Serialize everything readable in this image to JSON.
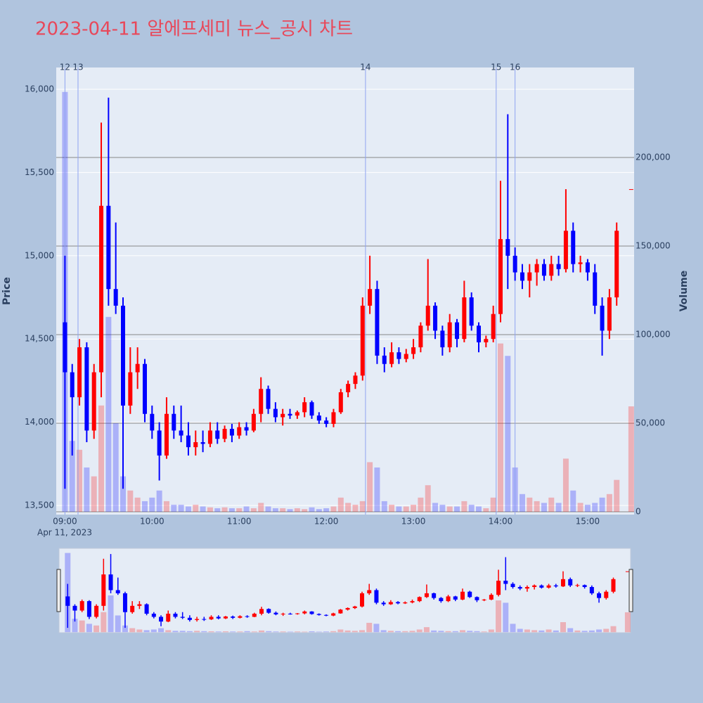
{
  "chart_data": {
    "type": "candlestick",
    "title": "2023-04-11 알에프세미 뉴스_공시 차트",
    "y_label": "Price",
    "y2_label": "Volume",
    "x_date_label": "Apr 11, 2023",
    "x": [
      "09:00",
      "09:05",
      "09:10",
      "09:15",
      "09:20",
      "09:25",
      "09:30",
      "09:35",
      "09:40",
      "09:45",
      "09:50",
      "09:55",
      "10:00",
      "10:05",
      "10:10",
      "10:15",
      "10:20",
      "10:25",
      "10:30",
      "10:35",
      "10:40",
      "10:45",
      "10:50",
      "10:55",
      "11:00",
      "11:05",
      "11:10",
      "11:15",
      "11:20",
      "11:25",
      "11:30",
      "11:35",
      "11:40",
      "11:45",
      "11:50",
      "11:55",
      "12:00",
      "12:05",
      "12:10",
      "12:15",
      "12:20",
      "12:25",
      "12:30",
      "12:35",
      "12:40",
      "12:45",
      "12:50",
      "12:55",
      "13:00",
      "13:05",
      "13:10",
      "13:15",
      "13:20",
      "13:25",
      "13:30",
      "13:35",
      "13:40",
      "13:45",
      "13:50",
      "13:55",
      "14:00",
      "14:05",
      "14:10",
      "14:15",
      "14:20",
      "14:25",
      "14:30",
      "14:35",
      "14:40",
      "14:45",
      "14:50",
      "14:55",
      "15:00",
      "15:05",
      "15:10",
      "15:15",
      "15:20",
      "15:30"
    ],
    "open": [
      14600,
      14300,
      14150,
      14450,
      13950,
      14300,
      15300,
      14800,
      14700,
      14100,
      14300,
      14350,
      14050,
      13950,
      13800,
      14050,
      13950,
      13920,
      13850,
      13880,
      13870,
      13950,
      13900,
      13960,
      13920,
      13970,
      13950,
      14050,
      14200,
      14080,
      14030,
      14050,
      14040,
      14060,
      14120,
      14040,
      14010,
      13990,
      14060,
      14180,
      14230,
      14280,
      14700,
      14800,
      14400,
      14350,
      14420,
      14380,
      14410,
      14450,
      14580,
      14700,
      14550,
      14450,
      14600,
      14500,
      14750,
      14580,
      14480,
      14500,
      14650,
      15100,
      15000,
      14900,
      14850,
      14900,
      14950,
      14880,
      14950,
      14920,
      15150,
      14950,
      14960,
      14900,
      14700,
      14550,
      14750,
      15400
    ],
    "high": [
      15000,
      14350,
      14500,
      14480,
      14350,
      15800,
      15950,
      15200,
      14750,
      14450,
      14450,
      14380,
      14100,
      14000,
      14150,
      14100,
      14100,
      14000,
      13950,
      13950,
      14000,
      14000,
      13980,
      13990,
      14000,
      14000,
      14080,
      14270,
      14220,
      14120,
      14080,
      14080,
      14070,
      14150,
      14130,
      14060,
      14030,
      14080,
      14200,
      14250,
      14300,
      14750,
      15000,
      14850,
      14450,
      14480,
      14450,
      14440,
      14500,
      14600,
      14980,
      14720,
      14580,
      14650,
      14620,
      14850,
      14780,
      14600,
      14520,
      14700,
      15450,
      15850,
      15050,
      14950,
      14950,
      14980,
      14980,
      15000,
      15000,
      15400,
      15200,
      15000,
      14980,
      14950,
      14750,
      14800,
      15200,
      15400
    ],
    "low": [
      13600,
      13800,
      14100,
      13880,
      13900,
      14150,
      14700,
      14650,
      13600,
      14050,
      14200,
      14000,
      13900,
      13650,
      13780,
      13900,
      13880,
      13800,
      13800,
      13820,
      13850,
      13870,
      13880,
      13880,
      13900,
      13920,
      13940,
      14000,
      14050,
      14000,
      13980,
      14020,
      14020,
      14030,
      14020,
      13990,
      13970,
      13970,
      14050,
      14150,
      14200,
      14250,
      14650,
      14350,
      14300,
      14330,
      14350,
      14360,
      14380,
      14420,
      14550,
      14500,
      14400,
      14420,
      14450,
      14480,
      14550,
      14420,
      14450,
      14480,
      14600,
      14800,
      14850,
      14800,
      14750,
      14820,
      14850,
      14850,
      14880,
      14900,
      14900,
      14900,
      14850,
      14650,
      14400,
      14500,
      14700,
      15400
    ],
    "close": [
      14300,
      14150,
      14450,
      13950,
      14300,
      15300,
      14800,
      14700,
      14100,
      14300,
      14350,
      14050,
      13950,
      13800,
      14050,
      13950,
      13920,
      13850,
      13880,
      13870,
      13950,
      13900,
      13960,
      13920,
      13970,
      13950,
      14050,
      14200,
      14080,
      14030,
      14050,
      14040,
      14060,
      14120,
      14040,
      14010,
      13990,
      14060,
      14180,
      14230,
      14280,
      14700,
      14800,
      14400,
      14350,
      14420,
      14380,
      14410,
      14450,
      14580,
      14700,
      14550,
      14450,
      14600,
      14500,
      14750,
      14580,
      14480,
      14500,
      14650,
      15100,
      15000,
      14900,
      14850,
      14900,
      14950,
      14880,
      14950,
      14920,
      15150,
      14950,
      14960,
      14900,
      14700,
      14550,
      14750,
      15150,
      15400
    ],
    "volume": [
      237000,
      40000,
      35000,
      25000,
      20000,
      60000,
      110000,
      50000,
      20000,
      12000,
      8000,
      6000,
      8000,
      12000,
      6000,
      4000,
      4000,
      3000,
      4000,
      3000,
      2500,
      2000,
      2500,
      2000,
      2000,
      3000,
      2000,
      5000,
      3000,
      2000,
      2000,
      1500,
      2000,
      1500,
      2500,
      1500,
      2000,
      3000,
      8000,
      5000,
      4000,
      6000,
      28000,
      25000,
      6000,
      4000,
      3000,
      3000,
      4000,
      8000,
      15000,
      5000,
      4000,
      3000,
      3000,
      6000,
      4000,
      3000,
      2000,
      8000,
      95000,
      88000,
      25000,
      10000,
      8000,
      6000,
      5000,
      8000,
      5000,
      30000,
      12000,
      5000,
      4000,
      5000,
      8000,
      10000,
      18000,
      59500
    ],
    "increasing_color": "#ff0000",
    "decreasing_color": "#0000ff",
    "news": [
      {
        "label": "12",
        "x": "09:00"
      },
      {
        "label": "13",
        "x": "09:09"
      },
      {
        "label": "14",
        "x": "12:27"
      },
      {
        "label": "15",
        "x": "13:57"
      },
      {
        "label": "16",
        "x": "14:10"
      }
    ],
    "xlim": [
      "08:54",
      "15:32"
    ],
    "xticks": [
      "09:00",
      "10:00",
      "11:00",
      "12:00",
      "13:00",
      "14:00",
      "15:00"
    ],
    "ylim": [
      13445,
      16131
    ],
    "yticks": [
      {
        "value": 13500,
        "label": "13,500"
      },
      {
        "value": 14000,
        "label": "14,000"
      },
      {
        "value": 14500,
        "label": "14,500"
      },
      {
        "value": 15000,
        "label": "15,000"
      },
      {
        "value": 15500,
        "label": "15,500"
      },
      {
        "value": 16000,
        "label": "16,000"
      }
    ],
    "y2lim": [
      -1587,
      250794
    ],
    "y2ticks": [
      0,
      {
        "value": 50000,
        "label": "50,000"
      },
      {
        "value": 100000,
        "label": "100,000"
      },
      {
        "value": 150000,
        "label": "150,000"
      },
      {
        "value": 200000,
        "label": "200,000"
      }
    ],
    "rangeslider": true
  }
}
